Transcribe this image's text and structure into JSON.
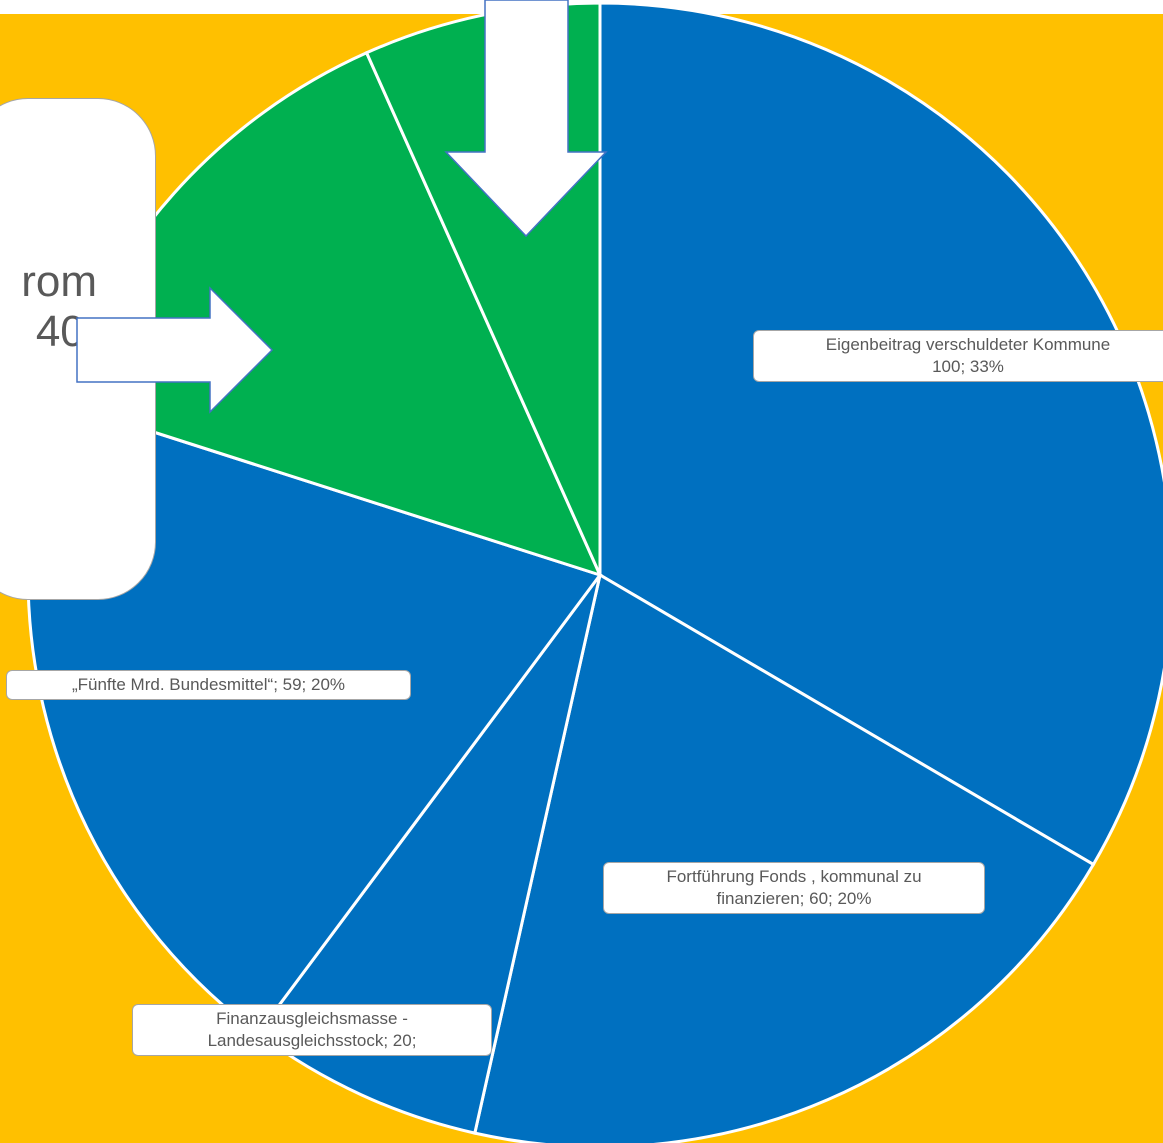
{
  "chart_data": {
    "type": "pie",
    "title": "",
    "series": [
      {
        "values": [
          100,
          60,
          20,
          59,
          40,
          20
        ]
      }
    ],
    "slices": [
      {
        "label": "Eigenbeitrag verschuldeter Kommune",
        "value": 100,
        "percent": "33%",
        "color": "#0070C0"
      },
      {
        "label": "Fortführung Fonds , kommunal zu finanzieren",
        "value": 60,
        "percent": "20%",
        "color": "#0070C0"
      },
      {
        "label": "Finanzausgleichsmasse - Landesausgleichsstock",
        "value": 20,
        "percent": "",
        "color": "#0070C0"
      },
      {
        "label": "„Fünfte Mrd. Bundesmittel“",
        "value": 59,
        "percent": "20%",
        "color": "#0070C0"
      },
      {
        "label": "",
        "value": 40,
        "percent": "",
        "color": "#00B050"
      },
      {
        "label": "",
        "value": 20,
        "percent": "",
        "color": "#00B050"
      }
    ],
    "data_labels": {
      "eigenbeitrag": [
        "Eigenbeitrag verschuldeter Kommune",
        "100; 33%"
      ],
      "fortfuehrung": [
        "Fortführung Fonds , kommunal zu",
        "finanzieren; 60; 20%"
      ],
      "finanzausgleich": [
        "Finanzausgleichsmasse -",
        "Landesausgleichsstock; 20;"
      ],
      "fuenfte": [
        "„Fünfte Mrd. Bundesmittel“; 59; 20%"
      ]
    },
    "callout_text": [
      "rom",
      "40;"
    ],
    "legend": "none"
  },
  "colors": {
    "background": "#FFC000",
    "blue": "#0070C0",
    "green": "#00B050",
    "arrow": "#ffffff",
    "label_text": "#595959"
  }
}
